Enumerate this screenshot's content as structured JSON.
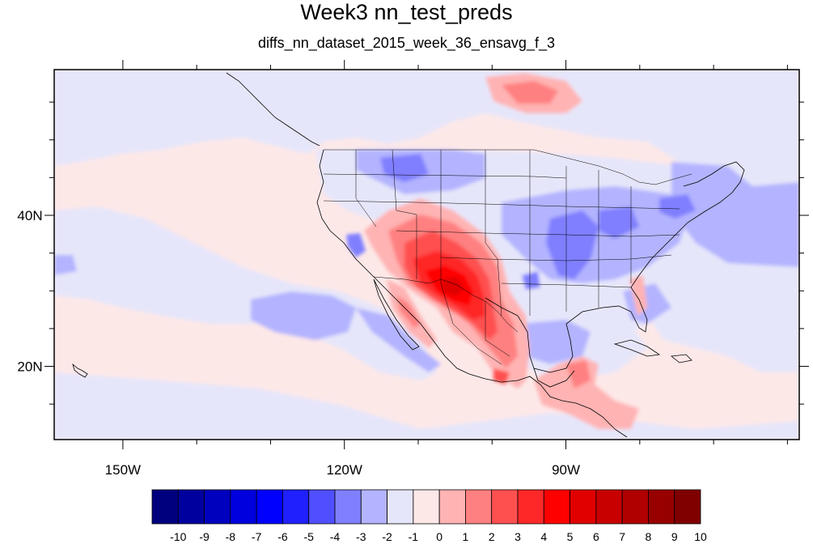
{
  "title": "Week3 nn_test_preds",
  "subtitle": "diffs_nn_dataset_2015_week_36_ensavg_f_3",
  "map": {
    "projection": "cylindrical-equidistant",
    "lon_range": [
      -159.3,
      -58.4
    ],
    "lat_range": [
      10.3,
      59.3
    ],
    "lon_ticks": [
      {
        "value": -150,
        "label": "150W"
      },
      {
        "value": -120,
        "label": "120W"
      },
      {
        "value": -90,
        "label": "90W"
      }
    ],
    "lat_ticks": [
      {
        "value": 40,
        "label": "40N"
      },
      {
        "value": 20,
        "label": "20N"
      }
    ],
    "background_level": "0 to 1 (very light red)",
    "colors": {
      "ocean_background": "#fde8e8"
    }
  },
  "colorbar": {
    "labels": [
      "-10",
      "-9",
      "-8",
      "-7",
      "-6",
      "-5",
      "-4",
      "-3",
      "-2",
      "-1",
      "0",
      "1",
      "2",
      "3",
      "4",
      "5",
      "6",
      "7",
      "8",
      "9",
      "10"
    ],
    "colors": [
      "#00007f",
      "#00009f",
      "#0000bf",
      "#0000df",
      "#0000ff",
      "#2020ff",
      "#4f4fff",
      "#7f7fff",
      "#b3b3ff",
      "#e6e6fa",
      "#fde8e8",
      "#ffb3b3",
      "#ff8080",
      "#ff5050",
      "#ff2828",
      "#ff0000",
      "#e00000",
      "#c80000",
      "#b00000",
      "#980000",
      "#800000"
    ]
  }
}
